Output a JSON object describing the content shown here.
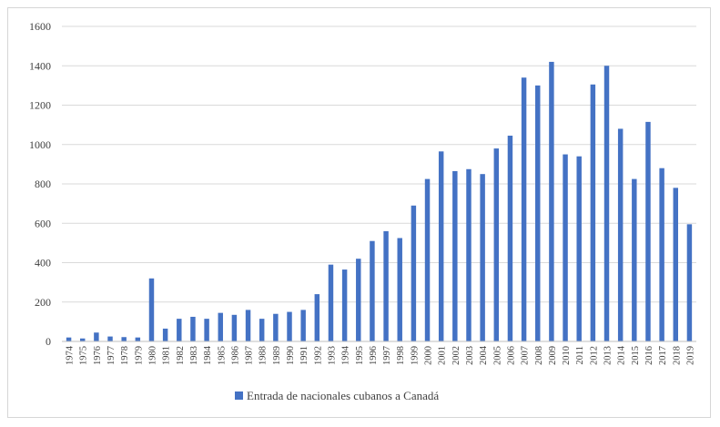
{
  "chart_data": {
    "type": "bar",
    "title": "",
    "xlabel": "",
    "ylabel": "",
    "ylim": [
      0,
      1600
    ],
    "yticks": [
      0,
      200,
      400,
      600,
      800,
      1000,
      1200,
      1400,
      1600
    ],
    "grid": "horizontal",
    "legend_position": "bottom-center",
    "bar_color": "#4472C4",
    "categories": [
      "1974",
      "1975",
      "1976",
      "1977",
      "1978",
      "1979",
      "1980",
      "1981",
      "1982",
      "1983",
      "1984",
      "1985",
      "1986",
      "1987",
      "1988",
      "1989",
      "1990",
      "1991",
      "1992",
      "1993",
      "1994",
      "1995",
      "1996",
      "1997",
      "1998",
      "1999",
      "2000",
      "2001",
      "2002",
      "2003",
      "2004",
      "2005",
      "2006",
      "2007",
      "2008",
      "2009",
      "2010",
      "2011",
      "2012",
      "2013",
      "2014",
      "2015",
      "2016",
      "2017",
      "2018",
      "2019"
    ],
    "series": [
      {
        "name": "Entrada de nacionales cubanos a Canadá",
        "values": [
          20,
          15,
          45,
          25,
          22,
          20,
          320,
          65,
          115,
          125,
          115,
          145,
          135,
          160,
          115,
          140,
          150,
          160,
          240,
          390,
          365,
          420,
          510,
          560,
          525,
          690,
          825,
          965,
          865,
          875,
          850,
          980,
          1045,
          1340,
          1300,
          1420,
          950,
          940,
          1305,
          1400,
          1080,
          825,
          1115,
          880,
          780,
          595
        ]
      }
    ]
  }
}
